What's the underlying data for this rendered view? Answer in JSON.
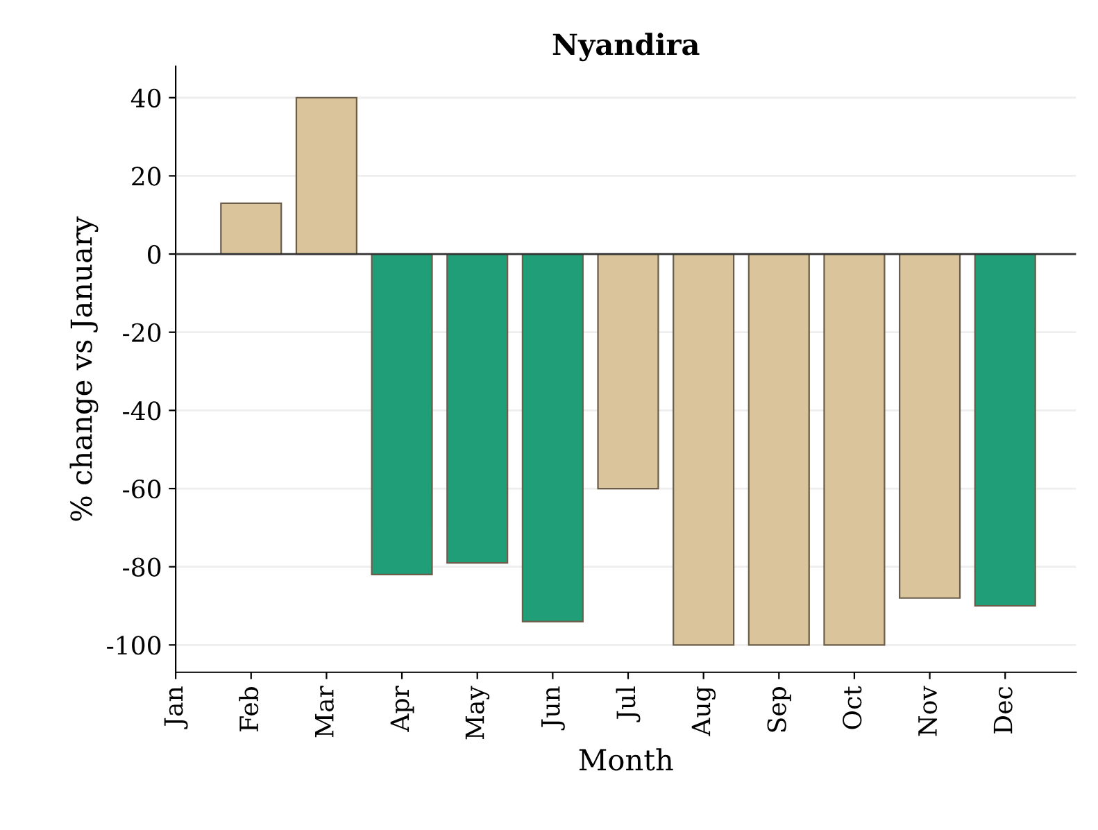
{
  "chart_data": {
    "type": "bar",
    "title": "Nyandira",
    "xlabel": "Month",
    "ylabel": "% change vs January",
    "categories": [
      "Jan",
      "Feb",
      "Mar",
      "Apr",
      "May",
      "Jun",
      "Jul",
      "Aug",
      "Sep",
      "Oct",
      "Nov",
      "Dec"
    ],
    "values": [
      null,
      13,
      40,
      -82,
      -79,
      -94,
      -60,
      -100,
      -100,
      -100,
      -88,
      -90
    ],
    "colors": [
      null,
      "#d9c49b",
      "#d9c49b",
      "#1f9e77",
      "#1f9e77",
      "#1f9e77",
      "#d9c49b",
      "#d9c49b",
      "#d9c49b",
      "#d9c49b",
      "#d9c49b",
      "#1f9e77"
    ],
    "ylim": [
      -107,
      48
    ],
    "yticks": [
      -100,
      -80,
      -60,
      -40,
      -20,
      0,
      20,
      40
    ],
    "grid": "y",
    "ref_lines": [
      {
        "axis": "y",
        "value": 0,
        "color": "#333333"
      }
    ]
  }
}
